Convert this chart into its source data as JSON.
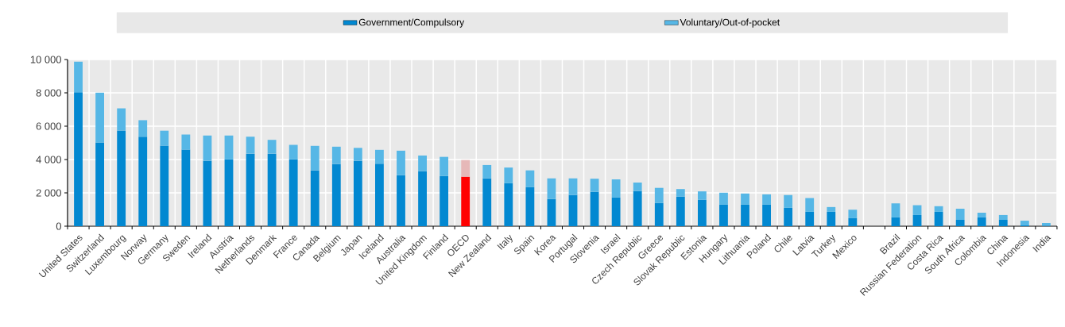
{
  "chart_data": {
    "type": "bar",
    "stacked": true,
    "categories": [
      "United States",
      "Switzerland",
      "Luxembourg",
      "Norway",
      "Germany",
      "Sweden",
      "Ireland",
      "Austria",
      "Netherlands",
      "Denmark",
      "France",
      "Canada",
      "Belgium",
      "Japan",
      "Iceland",
      "Australia",
      "United Kingdom",
      "Finland",
      "OECD",
      "New Zealand",
      "Italy",
      "Spain",
      "Korea",
      "Portugal",
      "Slovenia",
      "Israel",
      "Czech Republic",
      "Greece",
      "Slovak Republic",
      "Estonia",
      "Hungary",
      "Lithuania",
      "Poland",
      "Chile",
      "Latvia",
      "Turkey",
      "Mexico",
      null,
      "Brazil",
      "Russian Federation",
      "Costa Rica",
      "South Africa",
      "Colombia",
      "China",
      "Indonesia",
      "India"
    ],
    "series": [
      {
        "name": "Government/Compulsory",
        "color": "#0288d1",
        "colors": [
          "#0288d1",
          "#0288d1",
          "#0288d1",
          "#0288d1",
          "#0288d1",
          "#0288d1",
          "#0288d1",
          "#0288d1",
          "#0288d1",
          "#0288d1",
          "#0288d1",
          "#0288d1",
          "#0288d1",
          "#0288d1",
          "#0288d1",
          "#0288d1",
          "#0288d1",
          "#0288d1",
          "#ff0000",
          "#0288d1",
          "#0288d1",
          "#0288d1",
          "#0288d1",
          "#0288d1",
          "#0288d1",
          "#0288d1",
          "#0288d1",
          "#0288d1",
          "#0288d1",
          "#0288d1",
          "#0288d1",
          "#0288d1",
          "#0288d1",
          "#0288d1",
          "#0288d1",
          "#0288d1",
          "#0288d1",
          "#0288d1",
          "#0288d1",
          "#0288d1",
          "#0288d1",
          "#0288d1",
          "#0288d1",
          "#0288d1",
          "#0288d1",
          "#0288d1"
        ],
        "values": [
          8040,
          5020,
          5740,
          5370,
          4830,
          4590,
          3920,
          4020,
          4350,
          4350,
          4020,
          3350,
          3730,
          3920,
          3750,
          3060,
          3300,
          3010,
          2970,
          2870,
          2580,
          2340,
          1630,
          1870,
          2060,
          1720,
          2110,
          1390,
          1770,
          1580,
          1290,
          1290,
          1290,
          1100,
          860,
          860,
          480,
          null,
          530,
          670,
          860,
          380,
          530,
          380,
          50,
          30
        ]
      },
      {
        "name": "Voluntary/Out-of-pocket",
        "color": "#56b7e6",
        "colors": [
          "#56b7e6",
          "#56b7e6",
          "#56b7e6",
          "#56b7e6",
          "#56b7e6",
          "#56b7e6",
          "#56b7e6",
          "#56b7e6",
          "#56b7e6",
          "#56b7e6",
          "#56b7e6",
          "#56b7e6",
          "#56b7e6",
          "#56b7e6",
          "#56b7e6",
          "#56b7e6",
          "#56b7e6",
          "#56b7e6",
          "#e6b8b8",
          "#56b7e6",
          "#56b7e6",
          "#56b7e6",
          "#56b7e6",
          "#56b7e6",
          "#56b7e6",
          "#56b7e6",
          "#56b7e6",
          "#56b7e6",
          "#56b7e6",
          "#56b7e6",
          "#56b7e6",
          "#56b7e6",
          "#56b7e6",
          "#56b7e6",
          "#56b7e6",
          "#56b7e6",
          "#56b7e6",
          "#56b7e6",
          "#56b7e6",
          "#56b7e6",
          "#56b7e6",
          "#56b7e6",
          "#56b7e6",
          "#56b7e6",
          "#56b7e6",
          "#56b7e6"
        ],
        "values": [
          1830,
          2990,
          1330,
          990,
          900,
          910,
          1520,
          1420,
          1020,
          830,
          860,
          1470,
          1040,
          780,
          830,
          1470,
          940,
          1150,
          1000,
          800,
          940,
          1010,
          1240,
          1000,
          790,
          1090,
          510,
          910,
          460,
          510,
          720,
          670,
          620,
          770,
          830,
          290,
          510,
          null,
          840,
          590,
          340,
          670,
          280,
          290,
          280,
          160
        ]
      }
    ],
    "ylim": [
      0,
      10000
    ],
    "yticks": [
      0,
      {
        "value": 2000,
        "label": "2 000"
      },
      {
        "value": 4000,
        "label": "4 000"
      },
      {
        "value": 6000,
        "label": "6 000"
      },
      {
        "value": 8000,
        "label": "8 000"
      },
      {
        "value": 10000,
        "label": "10 000"
      }
    ],
    "grid": true,
    "legend": "top"
  }
}
